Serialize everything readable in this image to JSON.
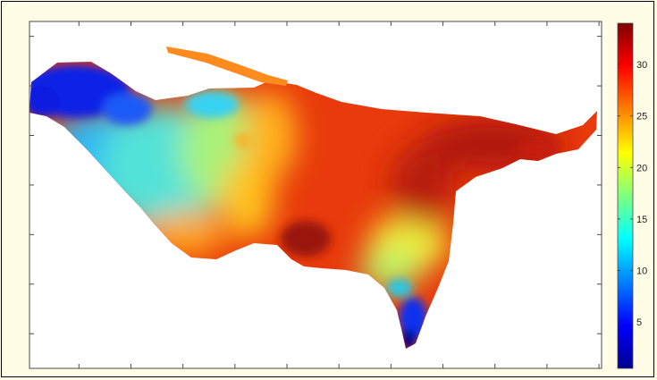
{
  "chart_data": {
    "type": "heatmap",
    "title": "",
    "xlabel": "",
    "ylabel": "",
    "colorbar": {
      "min": 0.5,
      "max": 34,
      "ticks": [
        5,
        10,
        15,
        20,
        25,
        30
      ],
      "tick_labels": [
        "5",
        "10",
        "15",
        "20",
        "25",
        "30"
      ],
      "colormap": "jet"
    },
    "x_tick_count": 11,
    "y_tick_count": 7,
    "regions": [
      {
        "name": "north-west lobe",
        "approx_value": 4
      },
      {
        "name": "western coast",
        "approx_value": 13
      },
      {
        "name": "central band",
        "approx_value": 19
      },
      {
        "name": "south-west edge",
        "approx_value": 26
      },
      {
        "name": "eastern interior",
        "approx_value": 31
      },
      {
        "name": "far eastern hotspot",
        "approx_value": 34
      },
      {
        "name": "southern yellow zone",
        "approx_value": 20
      },
      {
        "name": "southern tip",
        "approx_value": 3
      }
    ],
    "grid": false
  }
}
